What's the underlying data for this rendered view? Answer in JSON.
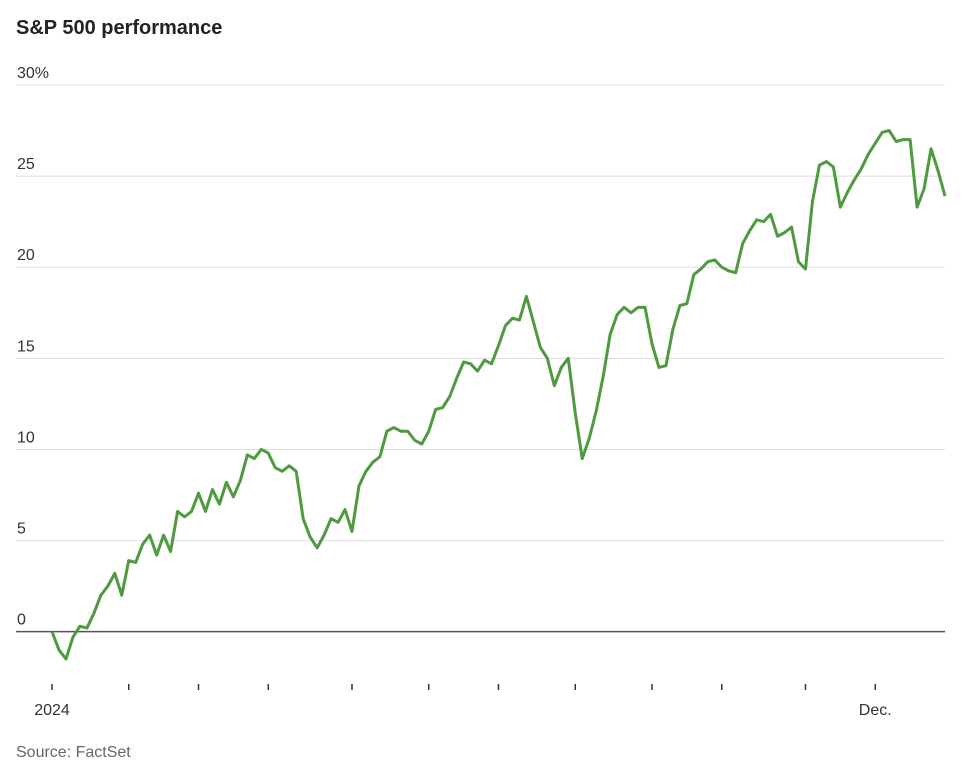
{
  "chart_data": {
    "type": "line",
    "title": "S&P 500 performance",
    "source": "Source: FactSet",
    "categories": [
      "2024",
      null,
      null,
      null,
      null,
      null,
      null,
      null,
      null,
      null,
      null,
      null,
      null,
      null,
      null,
      null,
      null,
      null,
      null,
      null,
      null,
      null,
      null,
      null,
      null,
      null,
      null,
      null,
      null,
      null,
      null,
      null,
      null,
      null,
      null,
      null,
      null,
      null,
      null,
      null,
      null,
      null,
      null,
      null,
      null,
      null,
      null,
      null,
      null,
      null,
      null,
      null,
      null,
      null,
      null,
      null,
      null,
      null,
      null,
      null,
      null,
      null,
      null,
      null,
      null,
      null,
      null,
      null,
      null,
      null,
      null,
      null,
      null,
      null,
      null,
      null,
      null,
      null,
      null,
      null,
      null,
      null,
      null,
      null,
      null,
      null,
      null,
      null,
      null,
      null,
      null,
      null,
      null,
      null,
      null,
      null,
      null,
      null,
      null,
      null,
      null,
      null,
      null,
      null,
      null,
      null,
      null,
      null,
      null,
      null,
      null,
      null,
      null,
      null,
      null,
      null,
      null,
      null,
      "Dec.",
      null,
      null,
      null,
      null,
      null,
      null,
      null,
      null,
      null,
      null
    ],
    "series": [
      {
        "name": "S&P 500",
        "color": "#4e9a3e",
        "values": [
          0,
          -1.0,
          -1.5,
          -0.3,
          0.3,
          0.2,
          1.0,
          2.0,
          2.5,
          3.2,
          2.0,
          3.9,
          3.8,
          4.8,
          5.3,
          4.2,
          5.3,
          4.4,
          6.6,
          6.3,
          6.6,
          7.6,
          6.6,
          7.8,
          7.0,
          8.2,
          7.4,
          8.3,
          9.7,
          9.5,
          10.0,
          9.8,
          9.0,
          8.8,
          9.1,
          8.8,
          6.2,
          5.2,
          4.6,
          5.3,
          6.2,
          6.0,
          6.7,
          5.5,
          8.0,
          8.8,
          9.3,
          9.6,
          11.0,
          11.2,
          11.0,
          11.0,
          10.5,
          10.3,
          11.0,
          12.2,
          12.3,
          12.9,
          13.9,
          14.8,
          14.7,
          14.3,
          14.9,
          14.7,
          15.7,
          16.8,
          17.2,
          17.1,
          18.4,
          17.0,
          15.6,
          15.0,
          13.5,
          14.5,
          15.0,
          12.0,
          9.5,
          10.6,
          12.1,
          14.0,
          16.3,
          17.4,
          17.8,
          17.5,
          17.8,
          17.8,
          15.8,
          14.5,
          14.6,
          16.6,
          17.9,
          18.0,
          19.6,
          19.9,
          20.3,
          20.4,
          20.0,
          19.8,
          19.7,
          21.3,
          22.0,
          22.6,
          22.5,
          22.9,
          21.7,
          21.9,
          22.2,
          20.3,
          19.9,
          23.6,
          25.6,
          25.8,
          25.5,
          23.3,
          24.1,
          24.8,
          25.4,
          26.2,
          26.8,
          27.4,
          27.5,
          26.9,
          27.0,
          27.0,
          23.3,
          24.3,
          26.5,
          25.3,
          23.9
        ]
      }
    ],
    "ylim": [
      -3.2,
      30
    ],
    "yticks": [
      0,
      5,
      10,
      15,
      20,
      25,
      {
        "value": 30,
        "label": "30%"
      }
    ],
    "grid": true
  }
}
